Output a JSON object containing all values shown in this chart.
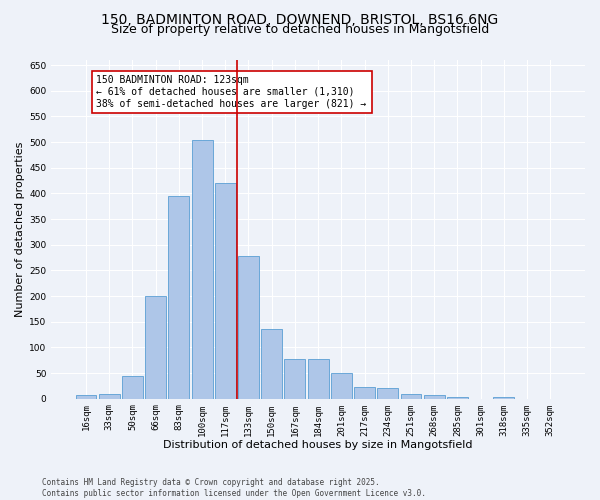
{
  "title_line1": "150, BADMINTON ROAD, DOWNEND, BRISTOL, BS16 6NG",
  "title_line2": "Size of property relative to detached houses in Mangotsfield",
  "xlabel": "Distribution of detached houses by size in Mangotsfield",
  "ylabel": "Number of detached properties",
  "categories": [
    "16sqm",
    "33sqm",
    "50sqm",
    "66sqm",
    "83sqm",
    "100sqm",
    "117sqm",
    "133sqm",
    "150sqm",
    "167sqm",
    "184sqm",
    "201sqm",
    "217sqm",
    "234sqm",
    "251sqm",
    "268sqm",
    "285sqm",
    "301sqm",
    "318sqm",
    "335sqm",
    "352sqm"
  ],
  "bar_values": [
    7,
    10,
    45,
    200,
    395,
    505,
    420,
    278,
    135,
    78,
    78,
    50,
    22,
    20,
    10,
    7,
    3,
    0,
    3,
    0,
    0
  ],
  "bar_color": "#aec6e8",
  "bar_edge_color": "#5a9fd4",
  "vline_x_index": 6.5,
  "vline_color": "#cc0000",
  "annotation_title": "150 BADMINTON ROAD: 123sqm",
  "annotation_line1": "← 61% of detached houses are smaller (1,310)",
  "annotation_line2": "38% of semi-detached houses are larger (821) →",
  "annotation_box_color": "#ffffff",
  "annotation_box_edge_color": "#cc0000",
  "ylim": [
    0,
    660
  ],
  "yticks": [
    0,
    50,
    100,
    150,
    200,
    250,
    300,
    350,
    400,
    450,
    500,
    550,
    600,
    650
  ],
  "footer_line1": "Contains HM Land Registry data © Crown copyright and database right 2025.",
  "footer_line2": "Contains public sector information licensed under the Open Government Licence v3.0.",
  "bg_color": "#eef2f9",
  "grid_color": "#ffffff",
  "title_fontsize": 10,
  "subtitle_fontsize": 9,
  "axis_label_fontsize": 8,
  "tick_fontsize": 6.5,
  "annotation_fontsize": 7,
  "footer_fontsize": 5.5
}
